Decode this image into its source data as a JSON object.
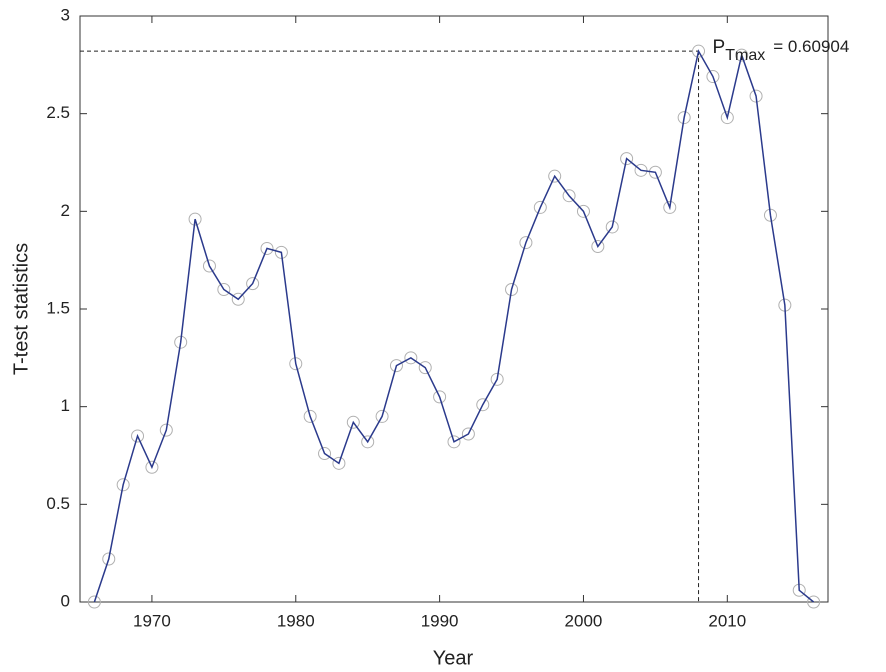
{
  "chart_data": {
    "type": "line",
    "xlabel": "Year",
    "ylabel": "T-test statistics",
    "annotation": {
      "text": "P",
      "subscript": "Tmax",
      "suffix": "= 0.60904"
    },
    "x": [
      1966,
      1967,
      1968,
      1969,
      1970,
      1971,
      1972,
      1973,
      1974,
      1975,
      1976,
      1977,
      1978,
      1979,
      1980,
      1981,
      1982,
      1983,
      1984,
      1985,
      1986,
      1987,
      1988,
      1989,
      1990,
      1991,
      1992,
      1993,
      1994,
      1995,
      1996,
      1997,
      1998,
      1999,
      2000,
      2001,
      2002,
      2003,
      2004,
      2005,
      2006,
      2007,
      2008,
      2009,
      2010,
      2011,
      2012,
      2013,
      2014,
      2015,
      2016
    ],
    "values": [
      0,
      0.22,
      0.6,
      0.85,
      0.69,
      0.88,
      1.33,
      1.96,
      1.72,
      1.6,
      1.55,
      1.63,
      1.81,
      1.79,
      1.22,
      0.95,
      0.76,
      0.71,
      0.92,
      0.82,
      0.95,
      1.21,
      1.25,
      1.2,
      1.05,
      0.82,
      0.86,
      1.01,
      1.14,
      1.6,
      1.84,
      2.02,
      2.18,
      2.08,
      2.0,
      1.82,
      1.92,
      2.27,
      2.21,
      2.2,
      2.02,
      2.48,
      2.82,
      2.69,
      2.48,
      2.8,
      2.59,
      1.98,
      1.52,
      0.06,
      0
    ],
    "color": "#2b3a8c",
    "marker_color": "#b0b0b0",
    "xlim": [
      1965,
      2017
    ],
    "xticks": [
      1970,
      1980,
      1990,
      2000,
      2010
    ],
    "ylim": [
      0,
      3
    ],
    "yticks": [
      0,
      0.5,
      1,
      1.5,
      2,
      2.5,
      3
    ],
    "max_index": 42
  }
}
